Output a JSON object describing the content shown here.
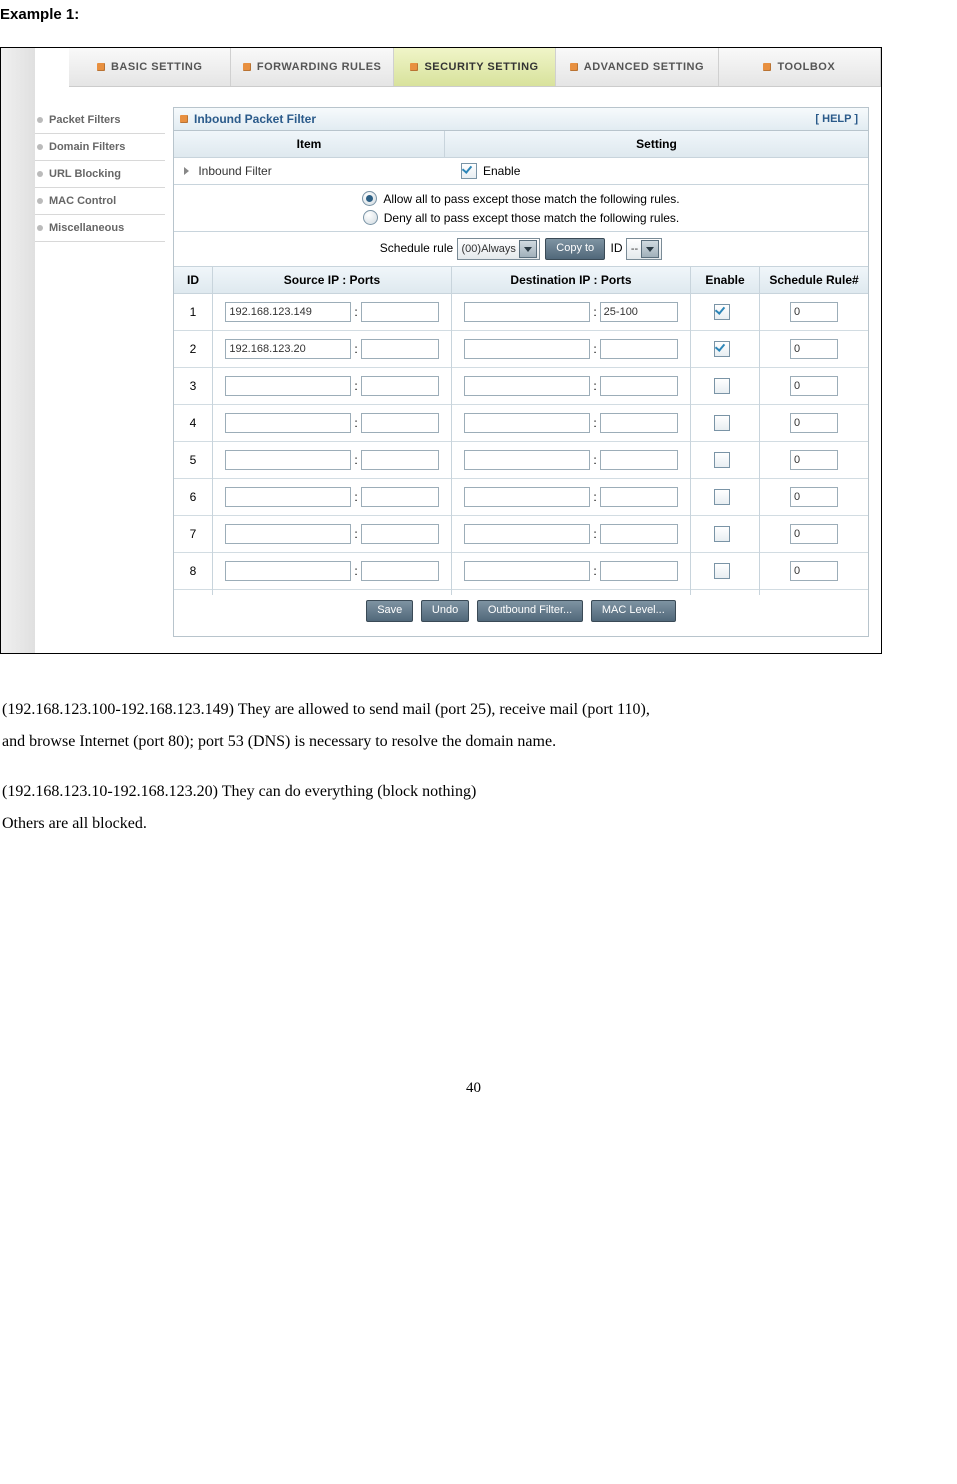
{
  "doc": {
    "example_title": "Example 1:",
    "para1a": "(192.168.123.100-192.168.123.149) They are allowed to send mail (port 25), receive mail (port 110),",
    "para1b": "and browse Internet (port 80); port 53 (DNS) is necessary to resolve the domain name.",
    "para2a": "(192.168.123.10-192.168.123.20) They can do everything (block nothing)",
    "para2b": "Others are all blocked.",
    "page_num": "40"
  },
  "nav": {
    "tabs": [
      "BASIC SETTING",
      "FORWARDING RULES",
      "SECURITY SETTING",
      "ADVANCED SETTING",
      "TOOLBOX"
    ],
    "active_index": 2
  },
  "sidebar": {
    "items": [
      "Packet Filters",
      "Domain Filters",
      "URL Blocking",
      "MAC Control",
      "Miscellaneous"
    ]
  },
  "panel": {
    "title": "Inbound Packet Filter",
    "help": "[ HELP ]",
    "col_item": "Item",
    "col_setting": "Setting",
    "inbound_label": "Inbound Filter",
    "enable_label": "Enable",
    "allow_text": "Allow all to pass except those match the following rules.",
    "deny_text": "Deny all to pass except those match the following rules.",
    "radio_selected": "allow",
    "schedule_label": "Schedule rule",
    "schedule_selected": "(00)Always",
    "copy_to_btn": "Copy to",
    "id_label": "ID",
    "id_select": "--"
  },
  "rules": {
    "head_id": "ID",
    "head_src": "Source IP : Ports",
    "head_dst": "Destination IP : Ports",
    "head_en": "Enable",
    "head_sch": "Schedule Rule#",
    "rows": [
      {
        "id": "1",
        "src_ip": "192.168.123.149",
        "src_port": "",
        "dst_ip": "",
        "dst_port": "25-100",
        "enabled": true,
        "sched": "0"
      },
      {
        "id": "2",
        "src_ip": "192.168.123.20",
        "src_port": "",
        "dst_ip": "",
        "dst_port": "",
        "enabled": true,
        "sched": "0"
      },
      {
        "id": "3",
        "src_ip": "",
        "src_port": "",
        "dst_ip": "",
        "dst_port": "",
        "enabled": false,
        "sched": "0"
      },
      {
        "id": "4",
        "src_ip": "",
        "src_port": "",
        "dst_ip": "",
        "dst_port": "",
        "enabled": false,
        "sched": "0"
      },
      {
        "id": "5",
        "src_ip": "",
        "src_port": "",
        "dst_ip": "",
        "dst_port": "",
        "enabled": false,
        "sched": "0"
      },
      {
        "id": "6",
        "src_ip": "",
        "src_port": "",
        "dst_ip": "",
        "dst_port": "",
        "enabled": false,
        "sched": "0"
      },
      {
        "id": "7",
        "src_ip": "",
        "src_port": "",
        "dst_ip": "",
        "dst_port": "",
        "enabled": false,
        "sched": "0"
      },
      {
        "id": "8",
        "src_ip": "",
        "src_port": "",
        "dst_ip": "",
        "dst_port": "",
        "enabled": false,
        "sched": "0"
      }
    ]
  },
  "buttons": {
    "save": "Save",
    "undo": "Undo",
    "outbound": "Outbound Filter...",
    "mac": "MAC Level..."
  }
}
